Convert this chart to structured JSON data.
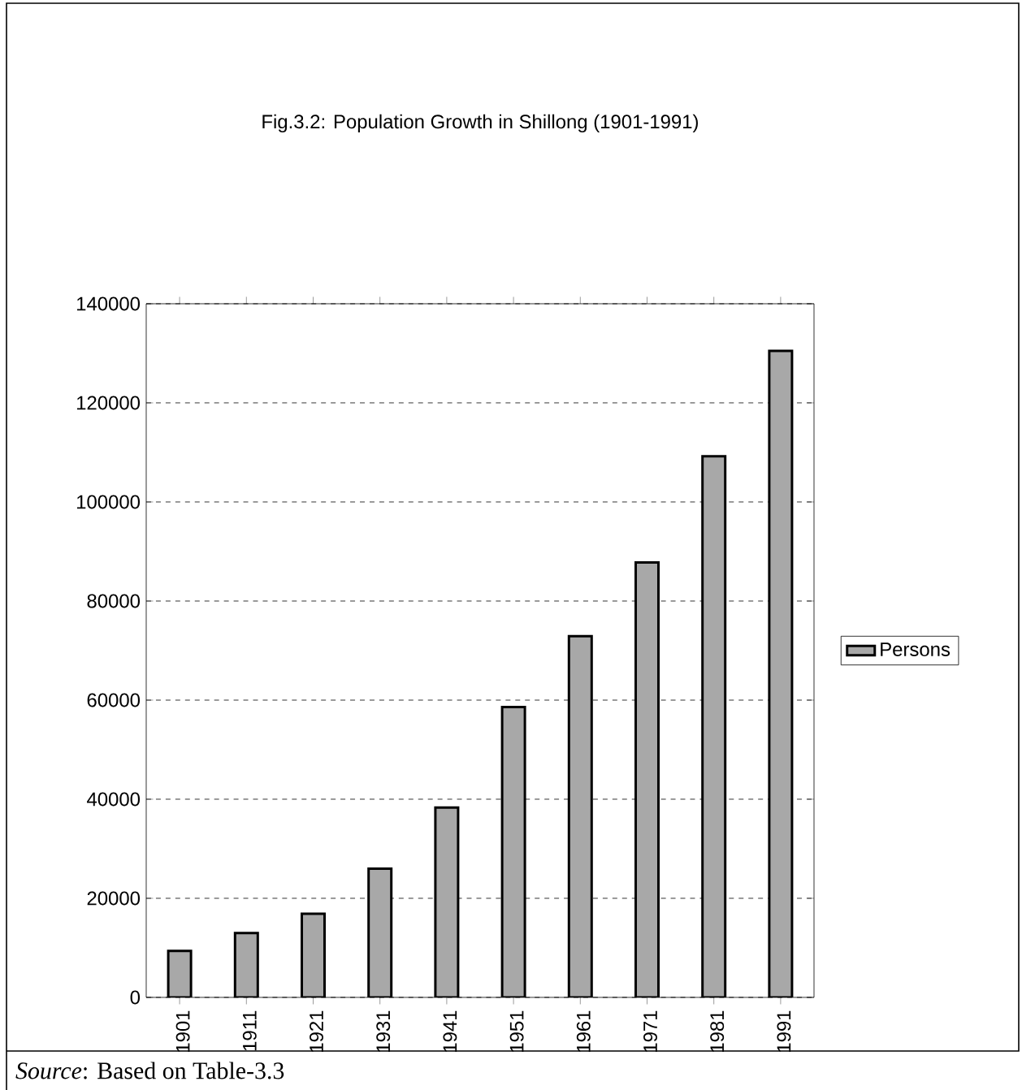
{
  "chart_data": {
    "type": "bar",
    "title": "Fig.3.2: Population Growth in Shillong (1901-1991)",
    "categories": [
      "1901",
      "1911",
      "1921",
      "1931",
      "1941",
      "1951",
      "1961",
      "1971",
      "1981",
      "1991"
    ],
    "series": [
      {
        "name": "Persons",
        "color": "#a8a8a8",
        "values": [
          9400,
          13000,
          16900,
          26000,
          38300,
          58600,
          72900,
          87800,
          109200,
          130500
        ]
      }
    ],
    "ylim": [
      0,
      140000
    ],
    "yticks": [
      0,
      20000,
      40000,
      60000,
      80000,
      100000,
      120000,
      140000
    ],
    "grid": "y",
    "legend": "right",
    "annotations": [
      "*Source*: Based on Table-3.3"
    ]
  }
}
